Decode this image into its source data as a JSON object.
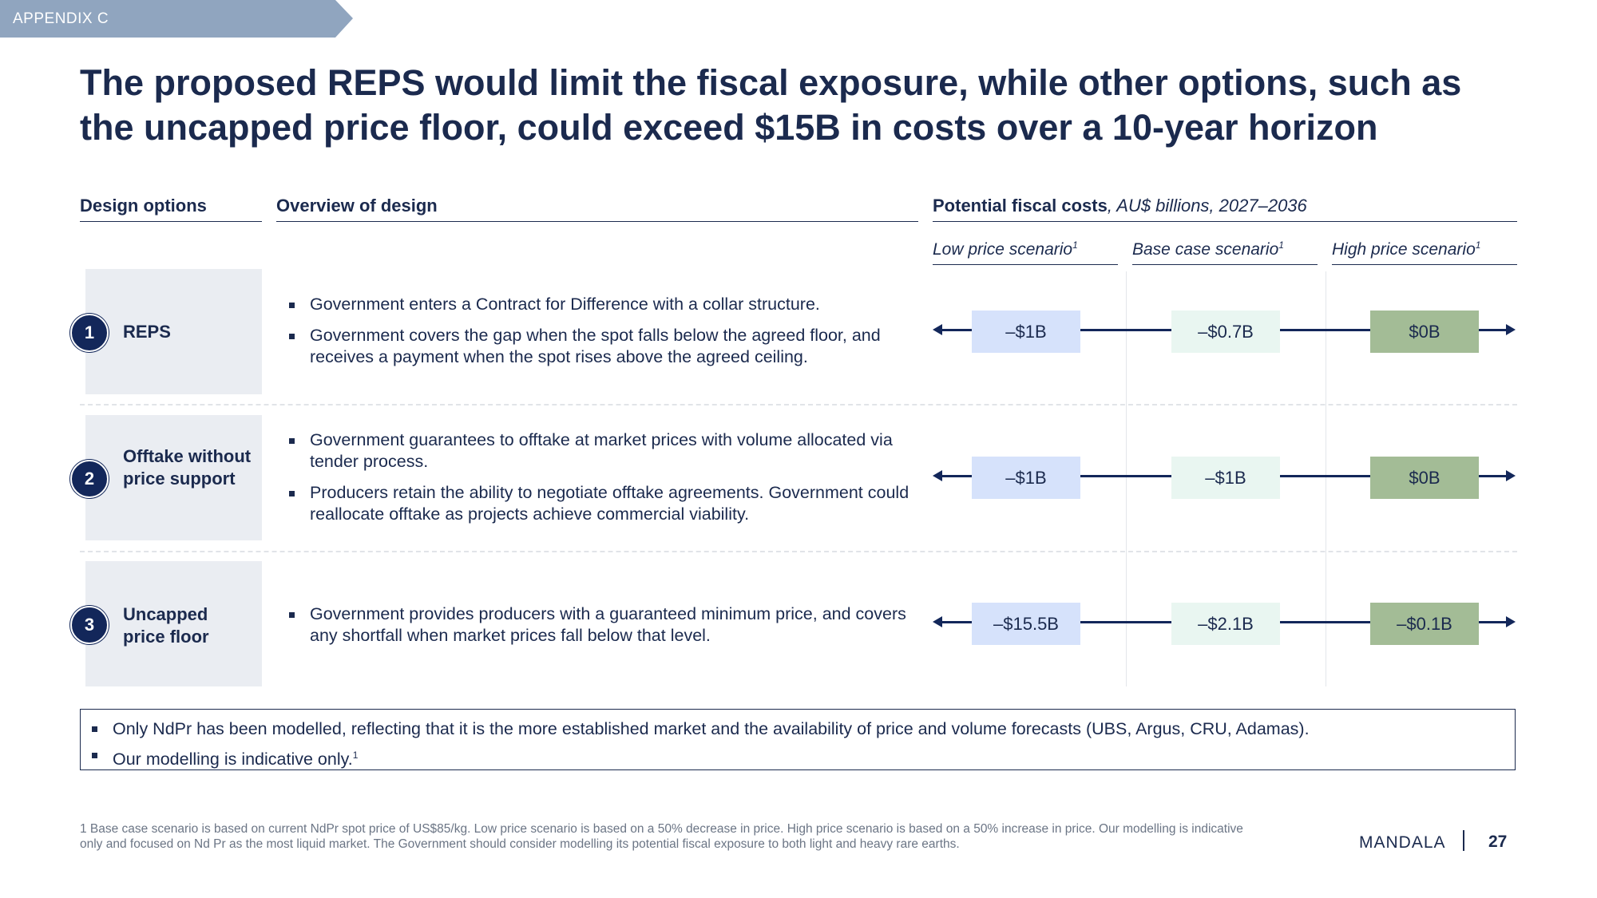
{
  "tag": "APPENDIX C",
  "title": "The proposed REPS would limit the fiscal exposure, while other options, such as the uncapped price floor, could exceed $15B in costs over a 10-year horizon",
  "headers": {
    "design_options": "Design options",
    "overview": "Overview of design",
    "costs_bold": "Potential fiscal costs",
    "costs_italic": ", AU$ billions, 2027–2036"
  },
  "scenarios": [
    {
      "label": "Low price scenario",
      "sup": "1"
    },
    {
      "label": "Base case scenario",
      "sup": "1"
    },
    {
      "label": "High price scenario",
      "sup": "1"
    }
  ],
  "colors": {
    "low": "#d6e2fb",
    "base": "#e9f6f1",
    "high": "#a3bc96",
    "navy": "#13275a"
  },
  "options": [
    {
      "number": "1",
      "label": "REPS",
      "bullets": [
        "Government enters a Contract for Difference with a collar structure.",
        "Government covers the gap when the spot falls below the agreed floor, and receives a payment when the spot rises above the agreed ceiling."
      ],
      "costs": [
        "–$1B",
        "–$0.7B",
        "$0B"
      ]
    },
    {
      "number": "2",
      "label": "Offtake without price support",
      "bullets": [
        "Government guarantees to offtake at market prices with volume allocated via tender process.",
        "Producers retain the ability to negotiate offtake agreements. Government could reallocate offtake as projects achieve commercial viability."
      ],
      "costs": [
        "–$1B",
        "–$1B",
        "$0B"
      ]
    },
    {
      "number": "3",
      "label": "Uncapped price floor",
      "bullets": [
        "Government provides producers with a guaranteed minimum price, and covers any shortfall when market prices fall below that level."
      ],
      "costs": [
        "–$15.5B",
        "–$2.1B",
        "–$0.1B"
      ]
    }
  ],
  "notes": [
    {
      "text": "Only NdPr has been modelled, reflecting that it is the more established market and the availability of price and volume forecasts (UBS, Argus, CRU, Adamas).",
      "sup": ""
    },
    {
      "text": "Our modelling is indicative only.",
      "sup": "1"
    }
  ],
  "footnote": "1 Base case scenario is based on current NdPr spot price of US$85/kg. Low price scenario is based on a 50% decrease in price. High price scenario is based on a 50% increase in price. Our modelling is indicative only and focused on Nd Pr as the most liquid market. The Government should consider modelling its potential fiscal exposure to both light and heavy rare earths.",
  "brand": "MANDALA",
  "page_number": "27"
}
